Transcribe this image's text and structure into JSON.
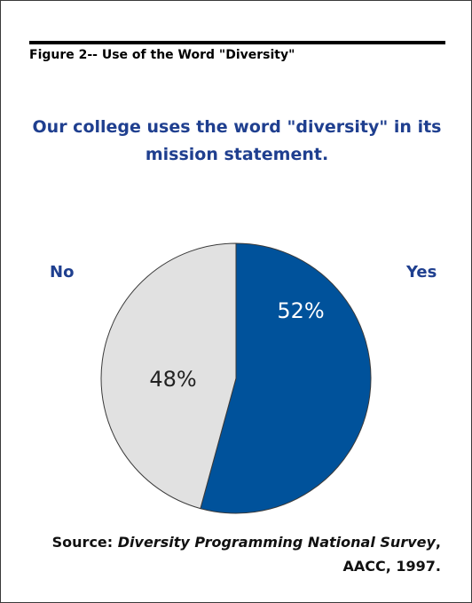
{
  "figure_label": "Figure 2--  Use of the Word \"Diversity\"",
  "question_line1": "Our college uses the word \"diversity\" in its",
  "question_line2": "mission statement.",
  "source": {
    "prefix": "Source: ",
    "title": "Diversity Programming National Survey",
    "after_title": ",",
    "line2": "AACC, 1997."
  },
  "colors": {
    "yes": "#00529b",
    "no": "#e1e1e1",
    "accent_text": "#1f3f8f"
  },
  "chart_data": {
    "type": "pie",
    "title": "Our college uses the word \"diversity\" in its mission statement.",
    "slices": [
      {
        "label": "Yes",
        "value": 52,
        "display": "52%"
      },
      {
        "label": "No",
        "value": 48,
        "display": "48%"
      }
    ],
    "legend": "side labels"
  }
}
